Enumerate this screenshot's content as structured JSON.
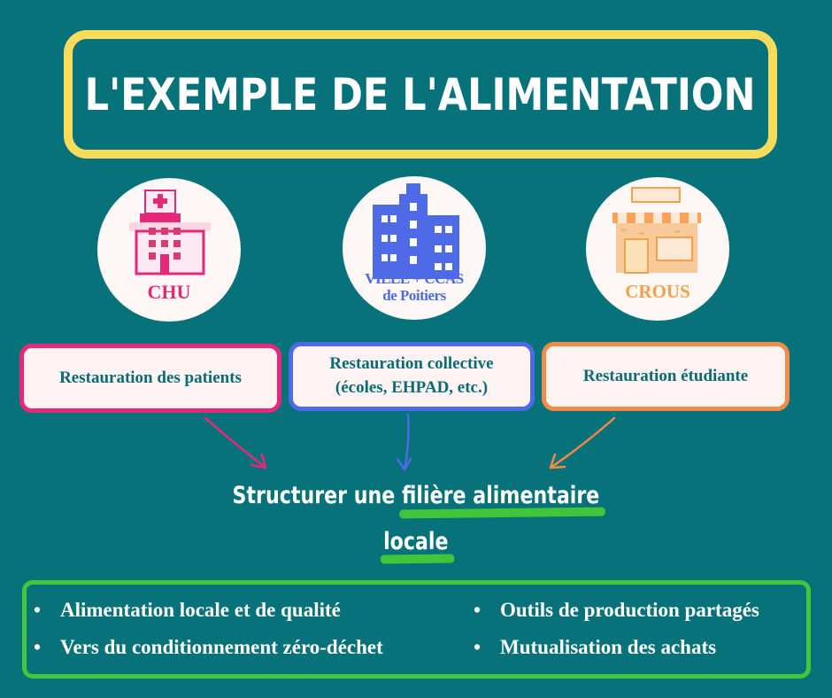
{
  "title": "L'EXEMPLE DE L'ALIMENTATION",
  "organizations": [
    {
      "label": "CHU",
      "icon": "hospital-icon",
      "color": "#e6287a"
    },
    {
      "label_line1": "VILLE + CCAS",
      "label_line2": "de Poitiers",
      "icon": "city-building-icon",
      "color": "#4e6ae6"
    },
    {
      "label": "CROUS",
      "icon": "storefront-icon",
      "color": "#f6a04a"
    }
  ],
  "cards": [
    {
      "line1": "Restauration des patients",
      "border": "#e6287a"
    },
    {
      "line1": "Restauration collective",
      "line2": "(écoles, EHPAD, etc.)",
      "border": "#4e6ae6"
    },
    {
      "line1": "Restauration étudiante",
      "border": "#f08a48"
    }
  ],
  "headline": {
    "part1": "Structurer une ",
    "part2": "filière alimentaire",
    "part3": "locale"
  },
  "bullets": [
    "Alimentation locale et de qualité",
    "Vers du conditionnement zéro-déchet",
    "Outils de production partagés",
    "Mutualisation des achats"
  ],
  "colors": {
    "background": "#07727a",
    "title_border": "#f7dc5c",
    "highlight": "#3fc63a"
  }
}
